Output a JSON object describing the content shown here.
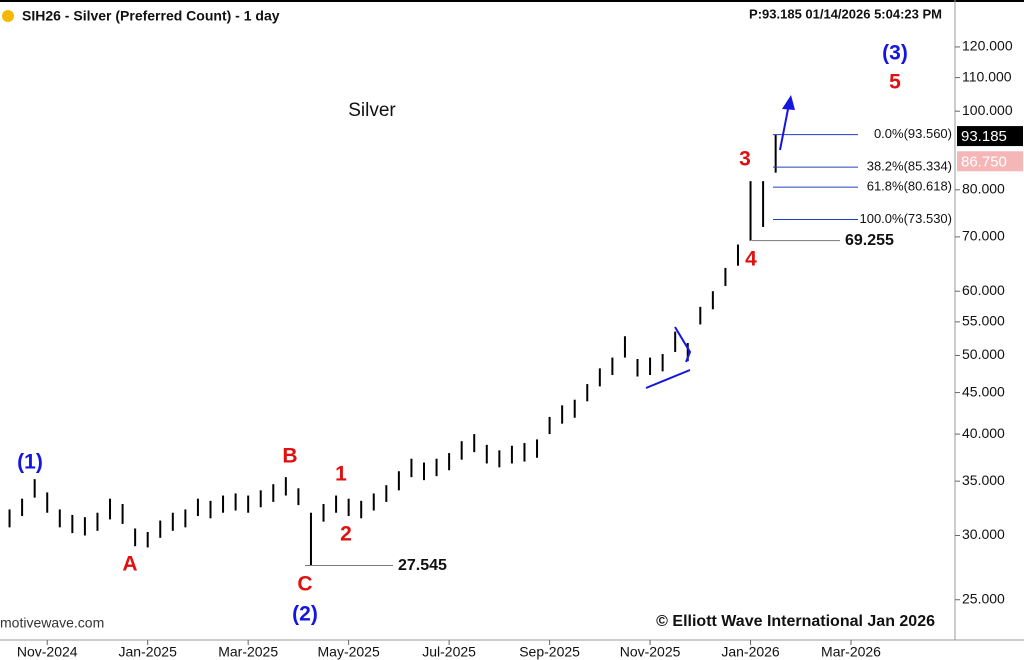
{
  "chart_data": {
    "type": "ohlc",
    "title": "SIH26 - Silver (Preferred Count) - 1 day",
    "status": "P:93.185  01/14/2026 5:04:23 PM",
    "subtitle": "Silver",
    "source": "motivewave.com",
    "copyright": "© Elliott Wave International Jan 2026",
    "log_scale": true,
    "color": "#000000",
    "x": [
      -0.75,
      -0.5,
      -0.25,
      0,
      0.25,
      0.5,
      0.75,
      1,
      1.25,
      1.5,
      1.75,
      2,
      2.25,
      2.5,
      2.75,
      3,
      3.25,
      3.5,
      3.75,
      4,
      4.25,
      4.5,
      4.75,
      5,
      5.25,
      5.5,
      5.75,
      6,
      6.25,
      6.5,
      6.75,
      7,
      7.25,
      7.5,
      7.75,
      8,
      8.25,
      8.5,
      8.75,
      9,
      9.25,
      9.5,
      9.75,
      10,
      10.25,
      10.5,
      10.75,
      11,
      11.25,
      11.5,
      11.75,
      12,
      12.25,
      12.5,
      12.75,
      13,
      13.25,
      13.5,
      13.75,
      14,
      14.25,
      14.5
    ],
    "high": [
      32.3,
      33.3,
      35.2,
      33.9,
      32.3,
      31.8,
      31.6,
      32.0,
      33.3,
      32.8,
      30.6,
      30.3,
      31.3,
      32.0,
      32.3,
      33.3,
      33.1,
      33.6,
      33.8,
      33.6,
      34.1,
      34.7,
      35.4,
      34.3,
      32.0,
      32.8,
      33.6,
      33.3,
      33.1,
      33.8,
      34.6,
      36.0,
      37.3,
      36.9,
      37.3,
      37.9,
      39.2,
      40.0,
      38.8,
      38.2,
      38.7,
      39.0,
      39.4,
      42.0,
      43.4,
      44.1,
      46.1,
      48.2,
      49.7,
      52.8,
      49.5,
      49.7,
      50.2,
      53.5,
      51.8,
      57.4,
      60.0,
      64.1,
      68.5,
      82.0,
      82.0,
      93.56
    ],
    "low": [
      30.7,
      31.7,
      33.4,
      32.0,
      30.7,
      30.2,
      30.0,
      30.4,
      31.4,
      31.0,
      29.1,
      29.0,
      29.8,
      30.4,
      30.7,
      31.7,
      31.5,
      32.0,
      32.2,
      32.0,
      32.5,
      33.0,
      33.6,
      32.7,
      27.545,
      31.2,
      32.0,
      31.7,
      31.5,
      32.2,
      33.0,
      34.1,
      35.4,
      35.1,
      35.5,
      36.1,
      37.2,
      38.0,
      36.8,
      36.4,
      36.8,
      37.0,
      37.4,
      40.0,
      41.2,
      41.9,
      43.9,
      45.8,
      47.3,
      49.7,
      47.1,
      47.3,
      47.8,
      50.5,
      49.2,
      54.6,
      57.0,
      60.9,
      64.5,
      69.255,
      72.0,
      84.0
    ],
    "xlim": [
      -0.94,
      18.07
    ],
    "xticks": [
      {
        "value": 0,
        "label": "Nov-2024"
      },
      {
        "value": 2,
        "label": "Jan-2025"
      },
      {
        "value": 4,
        "label": "Mar-2025"
      },
      {
        "value": 6,
        "label": "May-2025"
      },
      {
        "value": 8,
        "label": "Jul-2025"
      },
      {
        "value": 10,
        "label": "Sep-2025"
      },
      {
        "value": 12,
        "label": "Nov-2025"
      },
      {
        "value": 14,
        "label": "Jan-2026"
      },
      {
        "value": 16,
        "label": "Mar-2026"
      }
    ],
    "ylim": [
      22.3,
      137.1
    ],
    "yticks": [
      {
        "value": 25,
        "label": "25.000"
      },
      {
        "value": 30,
        "label": "30.000"
      },
      {
        "value": 35,
        "label": "35.000"
      },
      {
        "value": 40,
        "label": "40.000"
      },
      {
        "value": 45,
        "label": "45.000"
      },
      {
        "value": 50,
        "label": "50.000"
      },
      {
        "value": 55,
        "label": "55.000"
      },
      {
        "value": 60,
        "label": "60.000"
      },
      {
        "value": 70,
        "label": "70.000"
      },
      {
        "value": 80,
        "label": "80.000"
      },
      {
        "value": 100,
        "label": "100.000"
      },
      {
        "value": 110,
        "label": "110.000"
      },
      {
        "value": 120,
        "label": "120.000"
      }
    ],
    "fib_levels": [
      {
        "value": 93.56,
        "label": "0.0%(93.560)"
      },
      {
        "value": 85.334,
        "label": "38.2%(85.334)"
      },
      {
        "value": 80.618,
        "label": "61.8%(80.618)"
      },
      {
        "value": 73.53,
        "label": "100.0%(73.530)"
      }
    ],
    "levels": [
      27.545,
      69.255
    ],
    "price_tags": [
      {
        "value": 93.185,
        "label": "93.185",
        "color": "#000000"
      },
      {
        "value": 86.75,
        "label": "86.750",
        "color": "#f4b6b6"
      }
    ],
    "wave_labels": [
      {
        "text": "(1)",
        "color": "#1515e0"
      },
      {
        "text": "A",
        "color": "#e01010"
      },
      {
        "text": "B",
        "color": "#e01010"
      },
      {
        "text": "C",
        "color": "#e01010"
      },
      {
        "text": "(2)",
        "color": "#1515e0"
      },
      {
        "text": "1",
        "color": "#e01010"
      },
      {
        "text": "2",
        "color": "#e01010"
      },
      {
        "text": "3",
        "color": "#e01010"
      },
      {
        "text": "4",
        "color": "#e01010"
      },
      {
        "text": "5",
        "color": "#e01010"
      },
      {
        "text": "(3)",
        "color": "#1515e0"
      }
    ]
  }
}
